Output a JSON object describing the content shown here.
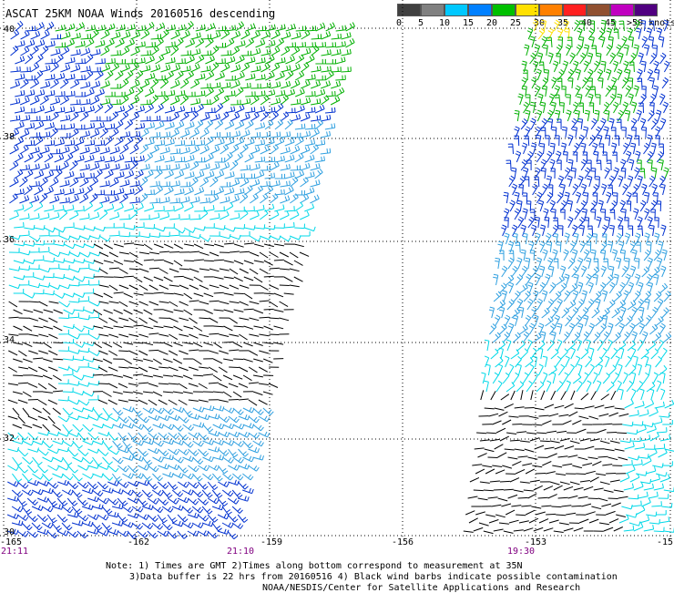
{
  "title": "ASCAT 25KM NOAA Winds 20160516 descending",
  "legend": {
    "labels": [
      "0",
      "5",
      "10",
      "15",
      "20",
      "25",
      "30",
      "35",
      "40",
      "45",
      ">50 knots"
    ],
    "colors": [
      "#404040",
      "#808080",
      "#00c8ff",
      "#0080ff",
      "#00c000",
      "#ffe000",
      "#ff8000",
      "#ff2020",
      "#905030",
      "#c000c0",
      "#500080"
    ]
  },
  "lat_labels": [
    "40",
    "38",
    "36",
    "34",
    "32",
    "30"
  ],
  "lon_labels": [
    "-165",
    "-162",
    "-159",
    "-156",
    "-153",
    "-15"
  ],
  "time_labels": [
    "21:11",
    "21:10",
    "19:30"
  ],
  "notes": {
    "line1": "Note: 1) Times are GMT 2)Times along bottom correspond to measurement at 35N",
    "line2": "3)Data buffer is 22 hrs from 20160516 4) Black wind barbs indicate possible contamination",
    "line3": "NOAA/NESDIS/Center for Satellite Applications and Research"
  },
  "barb_colors": {
    "black": "#000000",
    "cyan": "#00d8e8",
    "lightblue": "#30a0e0",
    "blue": "#0030d0",
    "green": "#00b000",
    "yellow": "#ffe000"
  }
}
